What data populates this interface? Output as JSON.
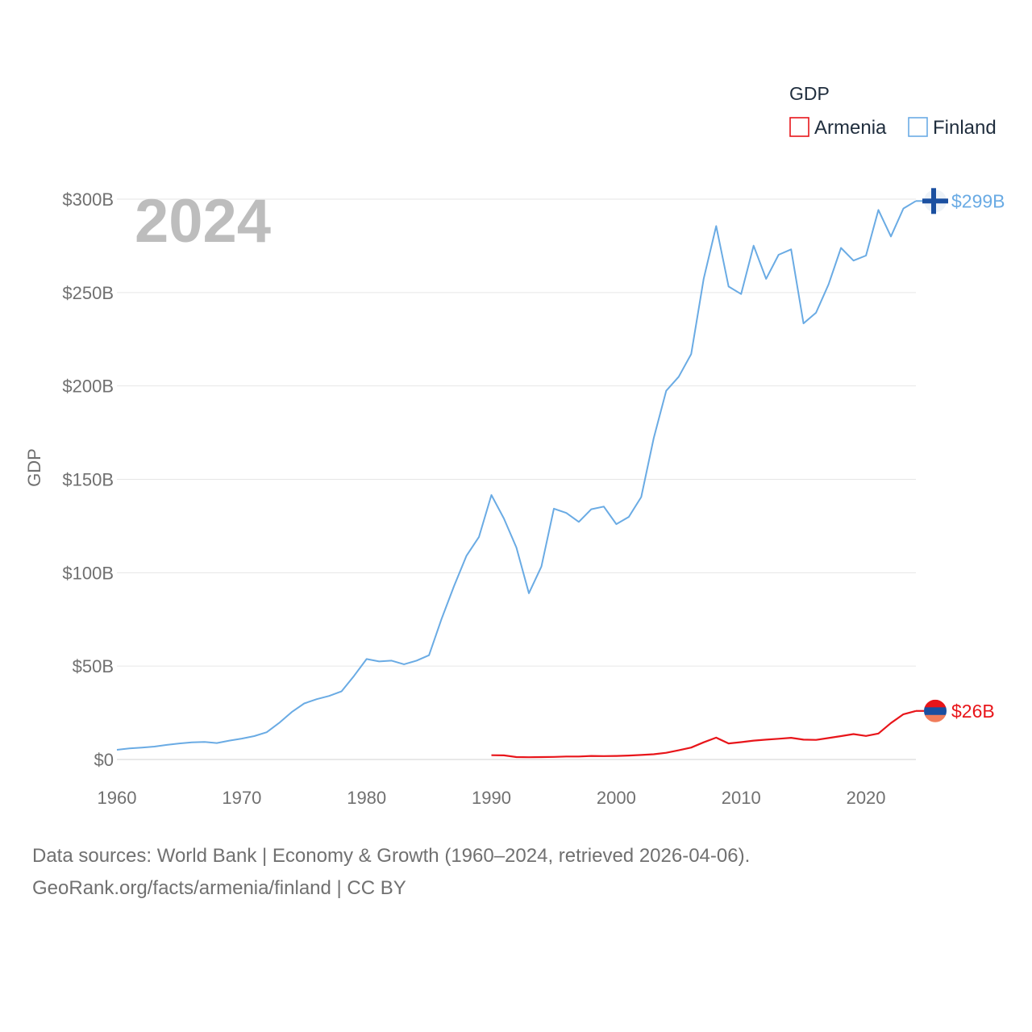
{
  "chart_data": {
    "type": "line",
    "year_label": "2024",
    "ylabel": "GDP",
    "legend_title": "GDP",
    "xlim": [
      1960,
      2024
    ],
    "ylim": [
      0,
      300
    ],
    "y_ticks": [
      0,
      50,
      100,
      150,
      200,
      250,
      300
    ],
    "y_tick_labels": [
      "$0",
      "$50B",
      "$100B",
      "$150B",
      "$200B",
      "$250B",
      "$300B"
    ],
    "x_ticks": [
      1960,
      1970,
      1980,
      1990,
      2000,
      2010,
      2020
    ],
    "x_tick_labels": [
      "1960",
      "1970",
      "1980",
      "1990",
      "2000",
      "2010",
      "2020"
    ],
    "series": [
      {
        "name": "Armenia",
        "color": "#e8151a",
        "end_label": "$26B",
        "start_year": 1990,
        "values": [
          2.3,
          2.2,
          1.3,
          1.2,
          1.3,
          1.4,
          1.6,
          1.6,
          1.9,
          1.8,
          1.9,
          2.1,
          2.4,
          2.8,
          3.6,
          4.9,
          6.4,
          9.2,
          11.7,
          8.6,
          9.3,
          10.1,
          10.6,
          11.1,
          11.6,
          10.6,
          10.5,
          11.5,
          12.5,
          13.6,
          12.6,
          13.9,
          19.5,
          24.2,
          26.0
        ]
      },
      {
        "name": "Finland",
        "color": "#6aabe4",
        "end_label": "$299B",
        "start_year": 1960,
        "values": [
          5.2,
          5.9,
          6.4,
          6.9,
          7.8,
          8.6,
          9.2,
          9.4,
          8.8,
          10.1,
          11.2,
          12.5,
          14.6,
          19.6,
          25.4,
          30.0,
          32.3,
          34.0,
          36.5,
          44.8,
          53.8,
          52.5,
          52.9,
          51.0,
          52.9,
          55.8,
          75.2,
          92.8,
          109.1,
          119.1,
          141.6,
          129.0,
          113.5,
          89.0,
          103.3,
          134.3,
          132.0,
          127.2,
          134.0,
          135.4,
          126.0,
          129.9,
          140.5,
          172.0,
          197.4,
          204.9,
          217.1,
          257.4,
          285.6,
          253.2,
          249.2,
          275.1,
          257.3,
          270.2,
          273.1,
          233.5,
          239.2,
          254.3,
          273.9,
          267.1,
          269.8,
          294.2,
          280.0,
          295.0,
          299.0
        ]
      }
    ]
  },
  "footer": {
    "line1": "Data sources: World Bank | Economy & Growth (1960–2024, retrieved 2026-04-06).",
    "line2": "GeoRank.org/facts/armenia/finland | CC BY"
  }
}
